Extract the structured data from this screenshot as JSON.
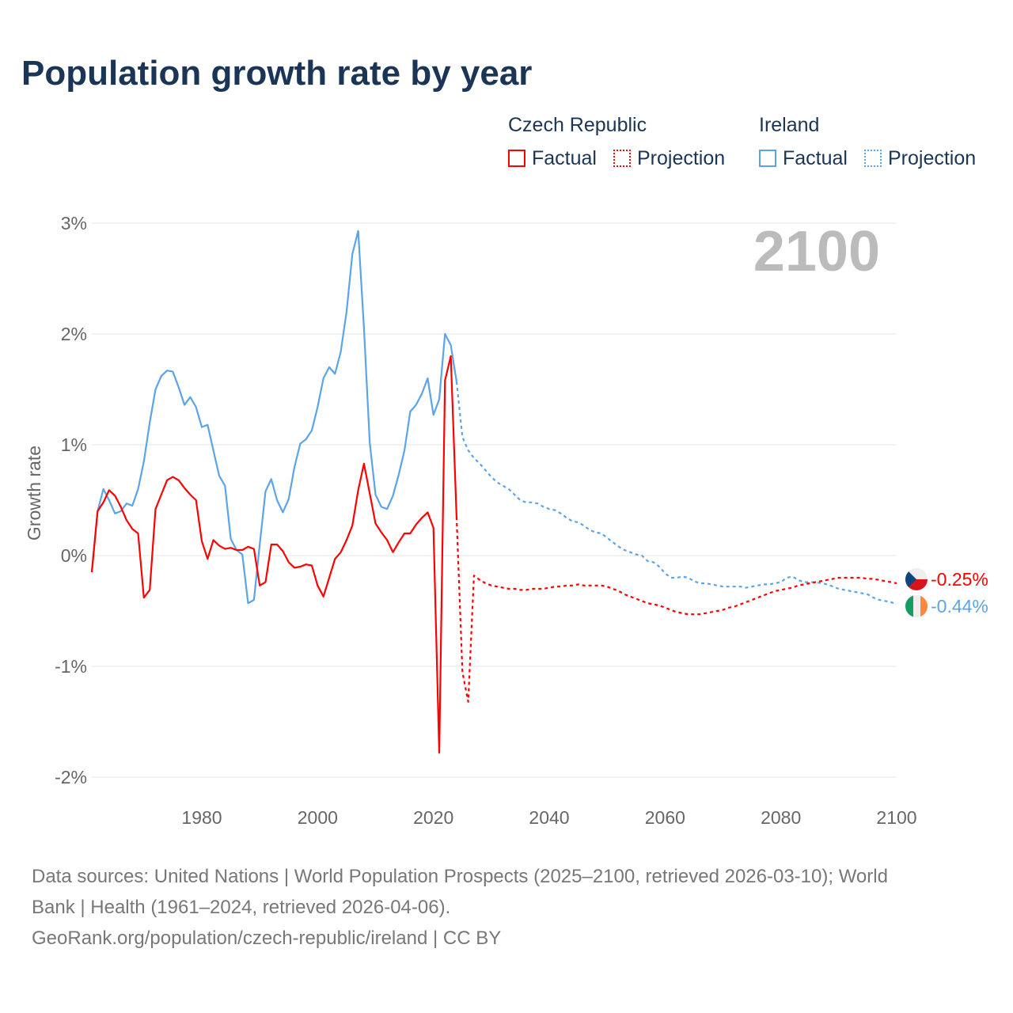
{
  "title": "Population growth rate by year",
  "legend": {
    "czech": {
      "name": "Czech Republic",
      "factual": "Factual",
      "projection": "Projection",
      "color": "#ff0000"
    },
    "ireland": {
      "name": "Ireland",
      "factual": "Factual",
      "projection": "Projection",
      "color": "#5ba4e8"
    }
  },
  "year_label": "2100",
  "sources": {
    "line1": "Data sources: United Nations | World Population Prospects (2025–2100, retrieved 2026-03-10); World",
    "line2": "Bank | Health (1961–2024, retrieved 2026-04-06).",
    "line3": "GeoRank.org/population/czech-republic/ireland | CC BY"
  },
  "chart_data": {
    "type": "line",
    "ylabel": "Growth rate",
    "xlabel": "",
    "xlim": [
      1961,
      2100
    ],
    "ylim": [
      -2.2,
      3.2
    ],
    "yticks": [
      3,
      2,
      1,
      0,
      -1,
      -2
    ],
    "ytick_labels": [
      "3%",
      "2%",
      "1%",
      "0%",
      "-1%",
      "-2%"
    ],
    "xticks": [
      1980,
      2000,
      2020,
      2040,
      2060,
      2080,
      2100
    ],
    "xtick_labels": [
      "1980",
      "2000",
      "2020",
      "2040",
      "2060",
      "2080",
      "2100"
    ],
    "end_labels": {
      "czech": "-0.25%",
      "ireland": "-0.44%"
    },
    "series": [
      {
        "name": "Ireland Factual",
        "country": "ireland",
        "dashed": false,
        "start": 1961,
        "values": [
          -0.15,
          0.4,
          0.6,
          0.5,
          0.38,
          0.4,
          0.47,
          0.45,
          0.6,
          0.85,
          1.2,
          1.5,
          1.62,
          1.67,
          1.66,
          1.52,
          1.36,
          1.43,
          1.34,
          1.16,
          1.18,
          0.95,
          0.72,
          0.63,
          0.15,
          0.05,
          0.01,
          -0.43,
          -0.4,
          0.1,
          0.58,
          0.69,
          0.5,
          0.39,
          0.51,
          0.8,
          1.01,
          1.05,
          1.13,
          1.34,
          1.6,
          1.7,
          1.64,
          1.84,
          2.2,
          2.72,
          2.93,
          2.05,
          1.02,
          0.55,
          0.44,
          0.42,
          0.54,
          0.73,
          0.95,
          1.3,
          1.36,
          1.46,
          1.6,
          1.27,
          1.41,
          2.0,
          1.9,
          1.57
        ]
      },
      {
        "name": "Ireland Projection",
        "country": "ireland",
        "dashed": true,
        "start": 2024,
        "values": [
          1.57,
          1.07,
          0.95,
          0.88,
          0.83,
          0.77,
          0.71,
          0.66,
          0.63,
          0.6,
          0.55,
          0.5,
          0.48,
          0.48,
          0.47,
          0.44,
          0.42,
          0.41,
          0.38,
          0.34,
          0.31,
          0.3,
          0.27,
          0.23,
          0.21,
          0.2,
          0.16,
          0.12,
          0.08,
          0.05,
          0.03,
          0.01,
          0.0,
          -0.05,
          -0.06,
          -0.1,
          -0.16,
          -0.2,
          -0.2,
          -0.19,
          -0.2,
          -0.23,
          -0.25,
          -0.25,
          -0.26,
          -0.27,
          -0.28,
          -0.28,
          -0.28,
          -0.28,
          -0.29,
          -0.28,
          -0.27,
          -0.26,
          -0.26,
          -0.25,
          -0.24,
          -0.2,
          -0.19,
          -0.22,
          -0.24,
          -0.24,
          -0.24,
          -0.25,
          -0.26,
          -0.28,
          -0.3,
          -0.31,
          -0.32,
          -0.33,
          -0.34,
          -0.35,
          -0.38,
          -0.4,
          -0.41,
          -0.42,
          -0.44
        ]
      },
      {
        "name": "Czech Republic Factual",
        "country": "czech",
        "dashed": false,
        "start": 1961,
        "values": [
          -0.15,
          0.4,
          0.48,
          0.59,
          0.54,
          0.44,
          0.32,
          0.24,
          0.2,
          -0.38,
          -0.31,
          0.42,
          0.55,
          0.68,
          0.71,
          0.68,
          0.61,
          0.55,
          0.5,
          0.13,
          -0.03,
          0.14,
          0.09,
          0.06,
          0.07,
          0.05,
          0.05,
          0.08,
          0.06,
          -0.27,
          -0.24,
          0.1,
          0.1,
          0.04,
          -0.06,
          -0.11,
          -0.1,
          -0.08,
          -0.09,
          -0.27,
          -0.37,
          -0.2,
          -0.03,
          0.03,
          0.14,
          0.27,
          0.59,
          0.83,
          0.56,
          0.29,
          0.21,
          0.14,
          0.03,
          0.12,
          0.2,
          0.2,
          0.28,
          0.34,
          0.39,
          0.25,
          -1.78,
          1.58,
          1.8,
          0.35
        ]
      },
      {
        "name": "Czech Republic Projection",
        "country": "czech",
        "dashed": true,
        "start": 2024,
        "values": [
          0.35,
          -1.05,
          -1.32,
          -0.18,
          -0.22,
          -0.25,
          -0.27,
          -0.28,
          -0.29,
          -0.3,
          -0.3,
          -0.31,
          -0.31,
          -0.3,
          -0.3,
          -0.3,
          -0.29,
          -0.28,
          -0.28,
          -0.27,
          -0.27,
          -0.26,
          -0.27,
          -0.27,
          -0.27,
          -0.27,
          -0.28,
          -0.3,
          -0.32,
          -0.35,
          -0.37,
          -0.39,
          -0.41,
          -0.43,
          -0.44,
          -0.45,
          -0.47,
          -0.49,
          -0.51,
          -0.52,
          -0.53,
          -0.53,
          -0.53,
          -0.52,
          -0.51,
          -0.5,
          -0.49,
          -0.47,
          -0.46,
          -0.44,
          -0.42,
          -0.4,
          -0.38,
          -0.36,
          -0.34,
          -0.32,
          -0.31,
          -0.3,
          -0.29,
          -0.27,
          -0.26,
          -0.25,
          -0.24,
          -0.23,
          -0.22,
          -0.21,
          -0.2,
          -0.2,
          -0.2,
          -0.2,
          -0.2,
          -0.21,
          -0.21,
          -0.22,
          -0.23,
          -0.24,
          -0.25
        ]
      }
    ]
  }
}
